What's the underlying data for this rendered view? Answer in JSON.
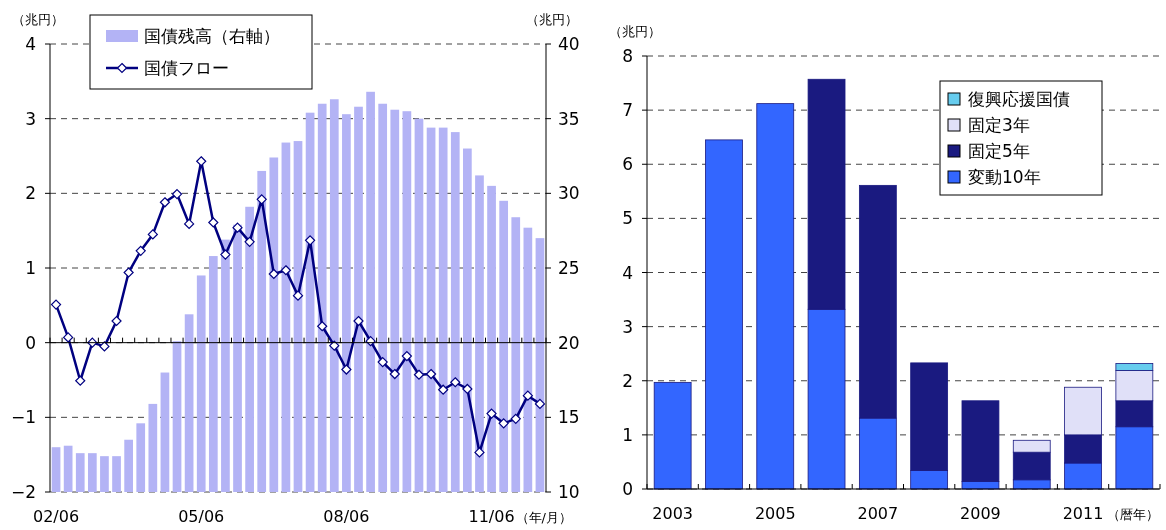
{
  "chart_data": [
    {
      "type": "bar",
      "categories": [
        "02/06",
        null,
        null,
        null,
        null,
        null,
        null,
        null,
        null,
        null,
        null,
        null,
        "05/06",
        null,
        null,
        null,
        null,
        null,
        null,
        null,
        null,
        null,
        null,
        null,
        "08/06",
        null,
        null,
        null,
        null,
        null,
        null,
        null,
        null,
        null,
        null,
        null,
        "11/06",
        null,
        null,
        null,
        null
      ],
      "xlabel": "（年/月）",
      "ylabel": "（兆円）",
      "y2label": "（兆円）",
      "ylim": [
        -2,
        4
      ],
      "yticks": [
        -2,
        -1,
        0,
        1,
        2,
        3,
        4
      ],
      "y2lim": [
        10,
        40
      ],
      "y2ticks": [
        10,
        15,
        20,
        25,
        30,
        35,
        40
      ],
      "grid": "y",
      "legend": "top left",
      "marker": "diamond",
      "series": [
        {
          "name": "国債残高（右軸）",
          "axis": "y2",
          "color": "#b3b3f5",
          "values": [
            13.0,
            13.1,
            12.6,
            12.6,
            12.4,
            12.4,
            13.5,
            14.6,
            15.9,
            18.0,
            20.1,
            21.9,
            24.5,
            25.8,
            26.9,
            27.9,
            29.1,
            31.5,
            32.4,
            33.4,
            33.5,
            35.4,
            36.0,
            36.3,
            35.3,
            35.8,
            36.8,
            36.0,
            35.6,
            35.5,
            35.0,
            34.4,
            34.4,
            34.1,
            33.0,
            31.2,
            30.5,
            29.5,
            28.4,
            27.7,
            27.0
          ]
        },
        {
          "name": "国債フロー",
          "type": "line",
          "color": "#000080",
          "values": [
            0.51,
            0.07,
            -0.51,
            0.0,
            -0.05,
            0.29,
            0.94,
            1.23,
            1.45,
            1.88,
            1.99,
            1.59,
            2.43,
            1.61,
            1.18,
            1.54,
            1.35,
            1.92,
            0.92,
            0.97,
            0.63,
            1.37,
            0.22,
            -0.04,
            -0.36,
            0.29,
            0.02,
            -0.26,
            -0.42,
            -0.18,
            -0.43,
            -0.42,
            -0.63,
            -0.53,
            -0.62,
            -1.47,
            -0.95,
            -1.08,
            -1.02,
            -0.71,
            -0.82
          ]
        }
      ]
    },
    {
      "type": "bar",
      "stacked": true,
      "categories": [
        "2003",
        null,
        "2005",
        null,
        "2007",
        null,
        "2009",
        null,
        "2011",
        null
      ],
      "xlabel": "（暦年）",
      "ylabel": "（兆円）",
      "ylim": [
        0,
        8
      ],
      "yticks": [
        0,
        1,
        2,
        3,
        4,
        5,
        6,
        7,
        8
      ],
      "grid": "y",
      "legend": "top right",
      "series": [
        {
          "name": "変動10年",
          "color": "#3366ff",
          "values": [
            1.97,
            6.45,
            7.12,
            3.32,
            1.31,
            0.34,
            0.14,
            0.17,
            0.48,
            1.15
          ]
        },
        {
          "name": "固定5年",
          "color": "#1a1a80",
          "values": [
            0,
            0,
            0,
            4.25,
            4.3,
            1.99,
            1.49,
            0.51,
            0.52,
            0.48
          ]
        },
        {
          "name": "固定3年",
          "color": "#e0e0f8",
          "values": [
            0,
            0,
            0,
            0,
            0,
            0,
            0,
            0.22,
            0.88,
            0.56
          ]
        },
        {
          "name": "復興応援国債",
          "color": "#66ccee",
          "values": [
            0,
            0,
            0,
            0,
            0,
            0,
            0,
            0,
            0,
            0.13
          ]
        }
      ]
    }
  ]
}
